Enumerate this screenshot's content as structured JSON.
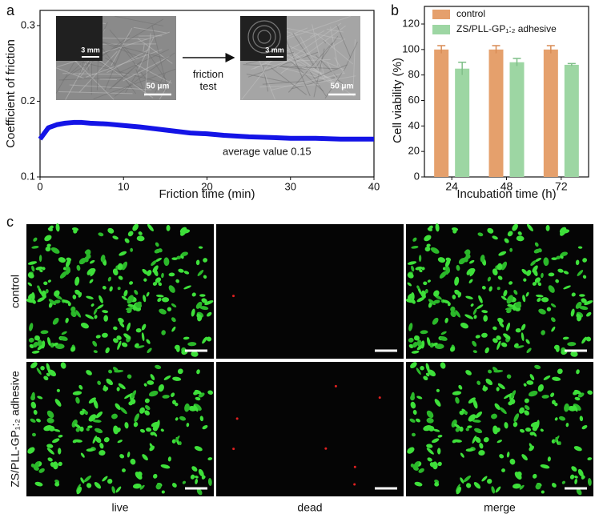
{
  "chart_data": [
    {
      "type": "line",
      "panel_label": "a",
      "xlabel": "Friction time (min)",
      "ylabel": "Coefficient of friction",
      "x": [
        0,
        1,
        2,
        3,
        4,
        5,
        6,
        8,
        10,
        12,
        15,
        18,
        20,
        22,
        25,
        28,
        30,
        33,
        36,
        40
      ],
      "series": [
        {
          "color": "#1414e6",
          "values": [
            0.15,
            0.165,
            0.169,
            0.171,
            0.172,
            0.172,
            0.171,
            0.17,
            0.168,
            0.166,
            0.162,
            0.158,
            0.157,
            0.155,
            0.153,
            0.152,
            0.151,
            0.151,
            0.15,
            0.15
          ]
        }
      ],
      "xlim": [
        0,
        40
      ],
      "xticks": [
        0,
        10,
        20,
        30,
        40
      ],
      "ylim": [
        0.1,
        0.32
      ],
      "yticks": [
        0.1,
        0.2,
        0.3
      ],
      "annotations": {
        "average": "average value  0.15",
        "arrow": "friction test",
        "inset_scale": "3 mm",
        "sem_scale": "50 μm"
      }
    },
    {
      "type": "bar",
      "panel_label": "b",
      "xlabel": "Incubation time (h)",
      "ylabel": "Cell viability (%)",
      "categories": [
        "24",
        "48",
        "72"
      ],
      "series": [
        {
          "name": "control",
          "color": "#e5a06c",
          "values": [
            100,
            100,
            100
          ],
          "errors": [
            3,
            3,
            3
          ]
        },
        {
          "name": "ZS/PLL-GP₁:₂ adhesive",
          "color": "#9dd6a3",
          "values": [
            85,
            90,
            88
          ],
          "errors": [
            5,
            3,
            1
          ]
        }
      ],
      "ylim": [
        0,
        120
      ],
      "yticks": [
        0,
        20,
        40,
        60,
        80,
        100,
        120
      ],
      "legend": "upper-left"
    }
  ],
  "panel_c": {
    "label": "c",
    "columns": [
      "live",
      "dead",
      "merge"
    ],
    "rows": [
      "control",
      "ZS/PLL-GP₁:₂ adhesive"
    ]
  }
}
